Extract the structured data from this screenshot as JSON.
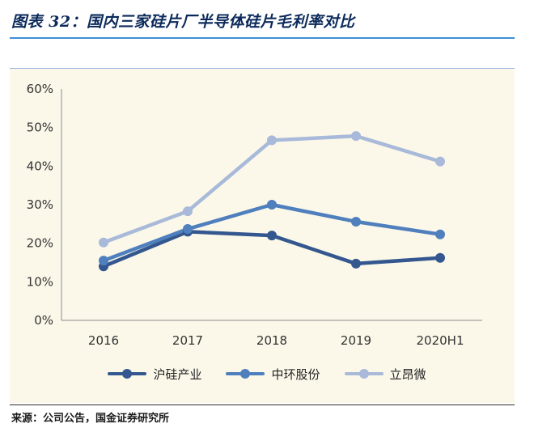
{
  "title": "图表 32：国内三家硅片厂半导体硅片毛利率对比",
  "source": "来源：公司公告，国金证券研究所",
  "colors": {
    "title": "#0b2a5b",
    "rule": "#3b8fd9",
    "panel": "#fbf8ea"
  },
  "chart_data": {
    "type": "line",
    "title": "",
    "xlabel": "",
    "ylabel": "",
    "categories": [
      "2016",
      "2017",
      "2018",
      "2019",
      "2020H1"
    ],
    "ylim": [
      0,
      60
    ],
    "yticks": [
      "0%",
      "10%",
      "20%",
      "30%",
      "40%",
      "50%",
      "60%"
    ],
    "ytick_values": [
      0,
      10,
      20,
      30,
      40,
      50,
      60
    ],
    "grid": false,
    "legend": "bottom",
    "series": [
      {
        "name": "沪硅产业",
        "color": "#33578e",
        "values": [
          14.0,
          23.0,
          22.0,
          14.7,
          16.2
        ]
      },
      {
        "name": "中环股份",
        "color": "#4f7fbd",
        "values": [
          15.5,
          23.7,
          30.0,
          25.6,
          22.3
        ]
      },
      {
        "name": "立昂微",
        "color": "#a9b9d9",
        "values": [
          20.2,
          28.3,
          46.7,
          47.8,
          41.2
        ]
      }
    ]
  }
}
